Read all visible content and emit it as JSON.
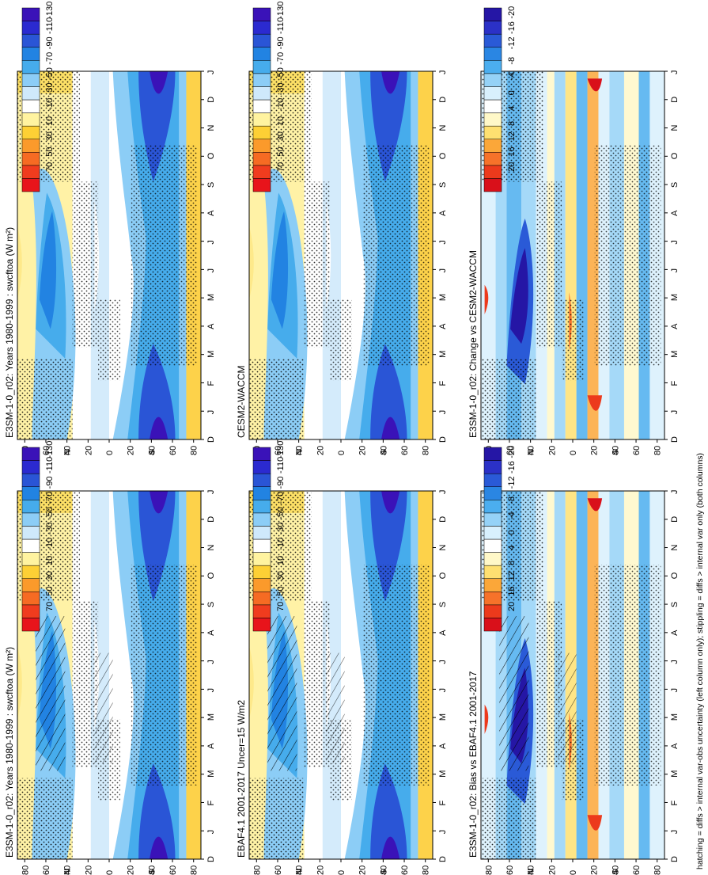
{
  "footer": "hatching = diffs > internal var-obs uncertainty (left column only); stippling = diffs > internal var only (both columns)",
  "colorbars": {
    "abs": [
      "70",
      "50",
      "30",
      "10",
      "-10",
      "-30",
      "-50",
      "-70",
      "-90",
      "-110",
      "-130"
    ],
    "diff": [
      "20",
      "16",
      "12",
      "8",
      "4",
      "0",
      "-4",
      "-8",
      "-12",
      "-16",
      "-20"
    ]
  },
  "chart_data": [
    {
      "type": "heatmap",
      "title": "E3SM-1-0_r02: Years 1980-1999 : swcftoa (W m²)",
      "x": [
        "D",
        "J",
        "F",
        "M",
        "A",
        "M",
        "J",
        "J",
        "A",
        "S",
        "O",
        "N",
        "D",
        "J"
      ],
      "y": [
        "80",
        "60",
        "40",
        "20",
        "0",
        "20",
        "40",
        "60",
        "80"
      ],
      "y_hemisphere_labels": [
        "N",
        "S"
      ],
      "colorbar": [
        "70",
        "50",
        "30",
        "10",
        "-10",
        "-30",
        "-50",
        "-70",
        "-90",
        "-110",
        "-130"
      ],
      "stippling": true,
      "hatching": true
    },
    {
      "type": "heatmap",
      "title": "E3SM-1-0_r02: Years 1980-1999 : swcftoa (W m²)",
      "x": [
        "D",
        "J",
        "F",
        "M",
        "A",
        "M",
        "J",
        "J",
        "A",
        "S",
        "O",
        "N",
        "D",
        "J"
      ],
      "y": [
        "80",
        "60",
        "40",
        "20",
        "0",
        "20",
        "40",
        "60",
        "80"
      ],
      "y_hemisphere_labels": [
        "N",
        "S"
      ],
      "colorbar": [
        "70",
        "50",
        "30",
        "10",
        "-10",
        "-30",
        "-50",
        "-70",
        "-90",
        "-110",
        "-130"
      ],
      "stippling": true,
      "hatching": false
    },
    {
      "type": "heatmap",
      "title": "EBAF4.1 2001-2017 Uncer=15 W/m2",
      "x": [
        "D",
        "J",
        "F",
        "M",
        "A",
        "M",
        "J",
        "J",
        "A",
        "S",
        "O",
        "N",
        "D",
        "J"
      ],
      "y": [
        "80",
        "60",
        "40",
        "20",
        "0",
        "20",
        "40",
        "60",
        "80"
      ],
      "y_hemisphere_labels": [
        "N",
        "S"
      ],
      "colorbar": [
        "70",
        "50",
        "30",
        "10",
        "-10",
        "-30",
        "-50",
        "-70",
        "-90",
        "-110",
        "-130"
      ],
      "stippling": true,
      "hatching": true
    },
    {
      "type": "heatmap",
      "title": "CESM2-WACCM",
      "x": [
        "D",
        "J",
        "F",
        "M",
        "A",
        "M",
        "J",
        "J",
        "A",
        "S",
        "O",
        "N",
        "D",
        "J"
      ],
      "y": [
        "80",
        "60",
        "40",
        "20",
        "0",
        "20",
        "40",
        "60",
        "80"
      ],
      "y_hemisphere_labels": [
        "N",
        "S"
      ],
      "colorbar": [
        "70",
        "50",
        "30",
        "10",
        "-10",
        "-30",
        "-50",
        "-70",
        "-90",
        "-110",
        "-130"
      ],
      "stippling": true,
      "hatching": false
    },
    {
      "type": "heatmap",
      "title": "E3SM-1-0_r02: Bias vs EBAF4.1 2001-2017",
      "x": [
        "D",
        "J",
        "F",
        "M",
        "A",
        "M",
        "J",
        "J",
        "A",
        "S",
        "O",
        "N",
        "D",
        "J"
      ],
      "y": [
        "80",
        "60",
        "40",
        "20",
        "0",
        "20",
        "40",
        "60",
        "80"
      ],
      "y_hemisphere_labels": [
        "N",
        "S"
      ],
      "colorbar": [
        "20",
        "16",
        "12",
        "8",
        "4",
        "0",
        "-4",
        "-8",
        "-12",
        "-16",
        "-20"
      ],
      "stippling": true,
      "hatching": true
    },
    {
      "type": "heatmap",
      "title": "E3SM-1-0_r02: Change vs CESM2-WACCM",
      "x": [
        "D",
        "J",
        "F",
        "M",
        "A",
        "M",
        "J",
        "J",
        "A",
        "S",
        "O",
        "N",
        "D",
        "J"
      ],
      "y": [
        "80",
        "60",
        "40",
        "20",
        "0",
        "20",
        "40",
        "60",
        "80"
      ],
      "y_hemisphere_labels": [
        "N",
        "S"
      ],
      "colorbar": [
        "20",
        "16",
        "12",
        "8",
        "4",
        "0",
        "-4",
        "-8",
        "-12",
        "-16",
        "-20"
      ],
      "stippling": true,
      "hatching": false
    }
  ]
}
